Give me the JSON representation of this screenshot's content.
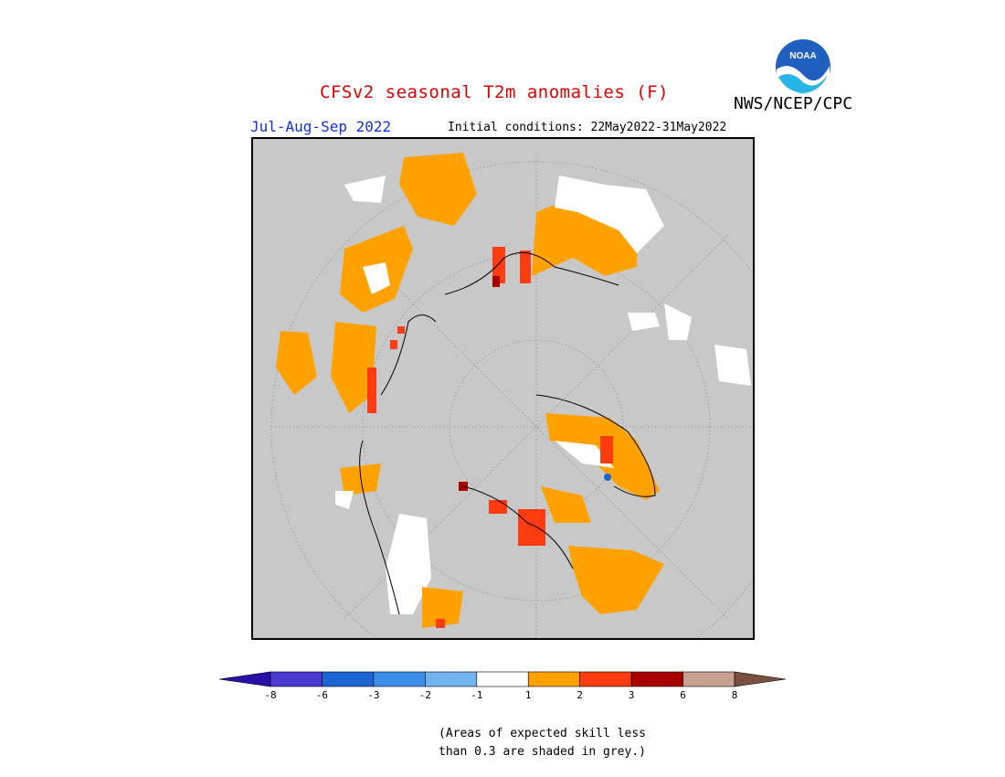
{
  "header": {
    "title": "CFSv2 seasonal T2m anomalies (F)",
    "agency": "NWS/NCEP/CPC",
    "season": "Jul-Aug-Sep 2022",
    "initial_conditions": "Initial conditions: 22May2022-31May2022"
  },
  "logo": {
    "text": "NOAA",
    "icon": "noaa-logo"
  },
  "map": {
    "projection": "north-polar-stereographic",
    "background_color": "#c8c8c8"
  },
  "colorbar": {
    "labels": [
      "-8",
      "-6",
      "-3",
      "-2",
      "-1",
      "1",
      "2",
      "3",
      "6",
      "8"
    ],
    "colors": [
      "#2a0fa8",
      "#4a3ad0",
      "#1c66d4",
      "#3a8ee8",
      "#72b4f0",
      "#ffffff",
      "#ffa200",
      "#ff3c10",
      "#a80000",
      "#c8a090",
      "#7a5040"
    ]
  },
  "footnote": {
    "line1": "(Areas of expected skill less",
    "line2": "than 0.3 are shaded in grey.)"
  }
}
